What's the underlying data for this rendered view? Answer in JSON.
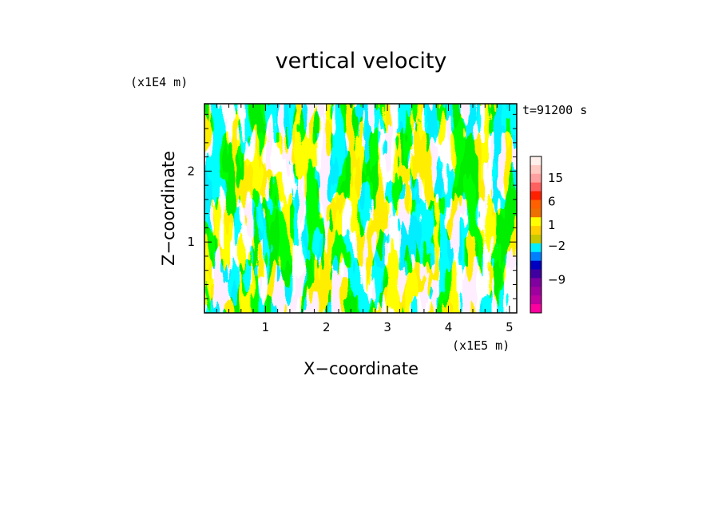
{
  "chart_data": {
    "type": "heatmap",
    "title": "vertical velocity",
    "xlabel": "X−coordinate",
    "ylabel": "Z−coordinate",
    "x_scale_label": "(x1E5 m)",
    "y_scale_label": "(x1E4 m)",
    "time_label": "t=91200 s",
    "xlim": [
      0,
      5.12
    ],
    "ylim": [
      0,
      2.95
    ],
    "x_ticks": [
      "1",
      "2",
      "3",
      "4",
      "5"
    ],
    "y_ticks": [
      "1",
      "2"
    ],
    "grid": false,
    "fill_colors": {
      "positive": "#ffff00",
      "negative": "#00eeff"
    },
    "colorbar": {
      "tick_labels": [
        "15",
        "6",
        "1",
        "−2",
        "−9"
      ],
      "colors": [
        "#fff0ec",
        "#ffc8c0",
        "#ffa0a0",
        "#ff6060",
        "#ff2000",
        "#ff6000",
        "#ee7000",
        "#ffff00",
        "#ffd000",
        "#c8c800",
        "#00f0ff",
        "#0080ff",
        "#0000c0",
        "#4000a0",
        "#8000a0",
        "#a000a0",
        "#c000a0",
        "#ff00a0"
      ]
    }
  }
}
